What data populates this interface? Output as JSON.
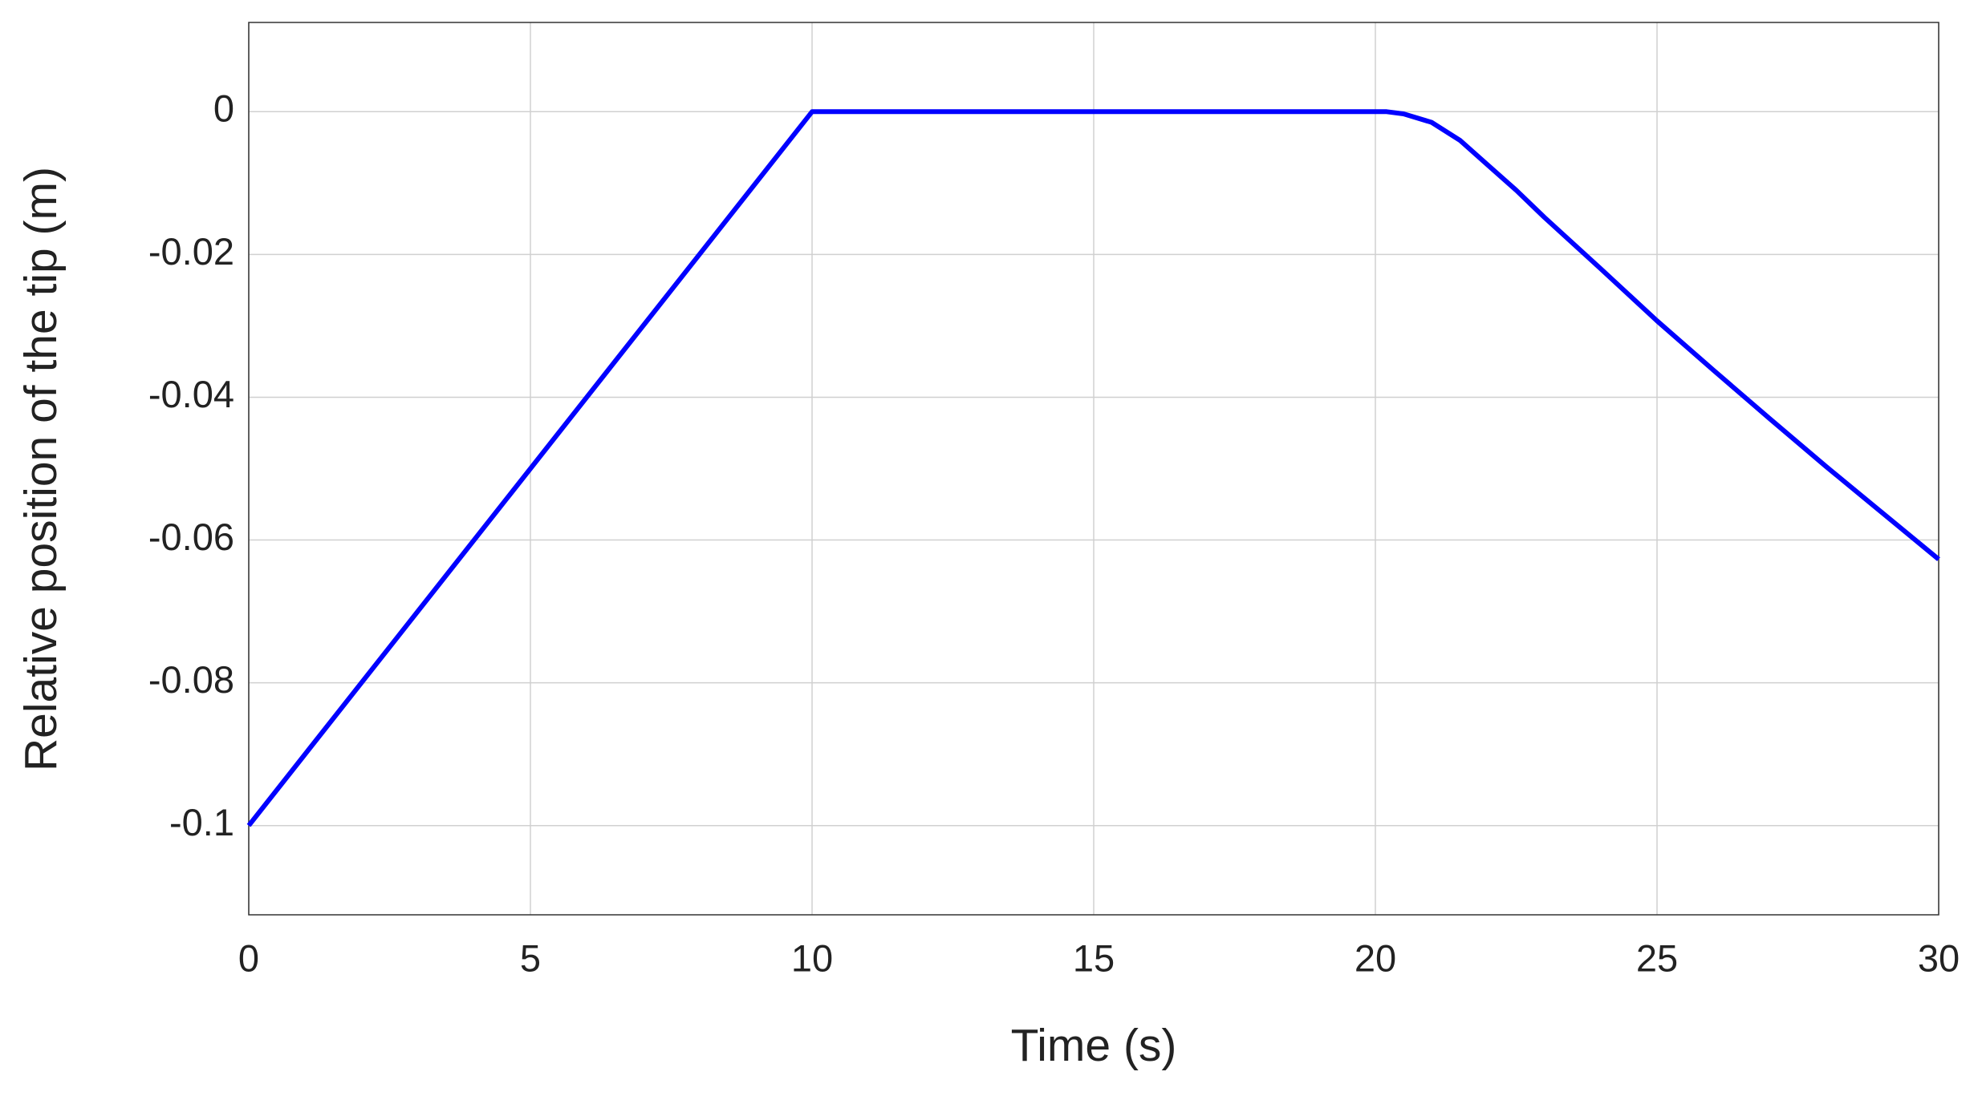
{
  "chart_data": {
    "type": "line",
    "xlabel": "Time (s)",
    "ylabel": "Relative position of the tip (m)",
    "x": [
      0,
      10,
      10.5,
      20.2,
      20.5,
      21,
      21.5,
      22,
      22.5,
      23,
      24,
      25,
      26,
      27,
      28,
      29,
      30
    ],
    "series": [
      {
        "color": "#0000ff",
        "values": [
          -0.1,
          0,
          0,
          0,
          -0.0003,
          -0.0015,
          -0.004,
          -0.0075,
          -0.011,
          -0.0148,
          -0.022,
          -0.0293,
          -0.0362,
          -0.043,
          -0.0497,
          -0.0562,
          -0.0627
        ]
      }
    ],
    "xlim": [
      0,
      30
    ],
    "xticks": [
      0,
      5,
      10,
      15,
      20,
      25,
      30
    ],
    "ylim": [
      -0.1125,
      0.0125
    ],
    "yticks": [
      -0.1,
      -0.08,
      -0.06,
      -0.04,
      -0.02,
      0
    ],
    "grid": true
  }
}
